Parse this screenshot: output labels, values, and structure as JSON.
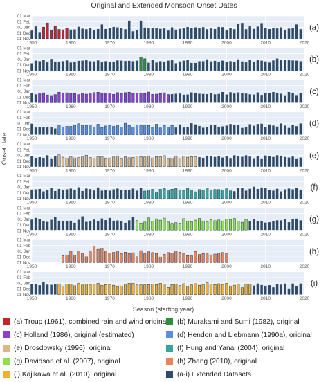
{
  "chart_data": {
    "type": "bar",
    "title": "Original and Extended Monsoon Onset Dates",
    "xlabel": "Season (starting year)",
    "ylabel": "Onset date",
    "xticks": [
      "1950",
      "1960",
      "1970",
      "1980",
      "1990",
      "2000",
      "2010",
      "2020"
    ],
    "yticks": [
      "01 Nov",
      "01 Dec",
      "01 Jan",
      "01 Feb",
      "01 Mar"
    ],
    "ylim_days_after_nov1": [
      0,
      120
    ],
    "extended_color": "#2f4b68",
    "panels": [
      {
        "label": "(a)",
        "start_year": 1950,
        "onset_days_after_nov1": [
          43,
          65,
          35,
          61,
          83,
          43,
          65,
          49,
          47,
          55,
          48,
          49,
          63,
          53,
          50,
          55,
          45,
          51,
          75,
          51,
          55,
          62,
          60,
          57,
          50,
          95,
          39,
          47,
          95,
          59,
          57,
          55,
          55,
          52,
          54,
          43,
          60,
          48,
          52,
          55,
          62,
          57,
          60,
          58,
          61,
          50,
          54,
          51,
          62,
          61,
          45,
          55,
          50,
          79,
          83,
          50,
          65,
          52,
          64,
          82,
          55,
          51,
          58,
          54,
          60,
          47,
          53,
          58,
          75,
          50
        ],
        "original_name": "(a) Troup (1961), combined rain and wind original",
        "original_color": "#c0272d",
        "original_years": [
          1953,
          1954,
          1955,
          1956,
          1957,
          1958,
          1959
        ]
      },
      {
        "label": "(b)",
        "start_year": 1950,
        "onset_days_after_nov1": [
          39,
          53,
          50,
          56,
          44,
          62,
          47,
          47,
          50,
          54,
          43,
          46,
          52,
          53,
          55,
          50,
          49,
          54,
          44,
          50,
          47,
          48,
          54,
          53,
          51,
          52,
          50,
          53,
          70,
          63,
          42,
          56,
          43,
          50,
          48,
          53,
          55,
          39,
          49,
          53,
          58,
          41,
          41,
          50,
          50,
          60,
          49,
          52,
          45,
          53,
          46,
          50,
          46,
          60,
          49,
          44,
          58,
          48,
          55,
          53,
          49,
          43,
          54,
          64,
          59,
          58,
          58,
          54,
          53,
          50
        ],
        "original_name": "(b) Murakami and Sumi (1982), original",
        "original_color": "#2f8f3a",
        "original_years": [
          1978,
          1979
        ]
      },
      {
        "label": "(c)",
        "start_year": 1950,
        "onset_days_after_nov1": [
          51,
          44,
          47,
          52,
          41,
          38,
          43,
          55,
          49,
          52,
          51,
          49,
          43,
          50,
          45,
          47,
          53,
          55,
          50,
          51,
          47,
          44,
          53,
          48,
          53,
          55,
          49,
          51,
          51,
          48,
          56,
          44,
          45,
          48,
          52,
          43,
          45,
          47,
          48,
          42,
          43,
          54,
          50,
          47,
          46,
          45,
          51,
          44,
          46,
          56,
          43,
          55,
          48,
          54,
          50,
          48,
          44,
          43,
          54,
          41,
          51,
          50,
          56,
          52,
          47,
          39,
          56,
          51,
          40,
          52
        ],
        "original_name": "(c) Holland (1986), original (estimated)",
        "original_color": "#8a3fd1",
        "original_years": [
          1952,
          1953,
          1954,
          1955,
          1956,
          1957,
          1958,
          1959,
          1960,
          1961,
          1962,
          1963,
          1964,
          1965,
          1966,
          1967,
          1968,
          1969,
          1970,
          1971,
          1972,
          1973,
          1974,
          1975,
          1976,
          1977,
          1978,
          1979,
          1980,
          1981,
          1982,
          1983,
          1984,
          1985
        ]
      },
      {
        "label": "(d)",
        "start_year": 1950,
        "onset_days_after_nov1": [
          58,
          38,
          42,
          40,
          42,
          42,
          33,
          50,
          41,
          44,
          44,
          48,
          58,
          50,
          48,
          52,
          40,
          55,
          38,
          46,
          49,
          44,
          50,
          41,
          60,
          49,
          40,
          52,
          48,
          50,
          49,
          39,
          55,
          36,
          49,
          41,
          49,
          38,
          54,
          38,
          41,
          60,
          54,
          46,
          37,
          42,
          51,
          52,
          40,
          44,
          48,
          56,
          51,
          53,
          36,
          40,
          55,
          47,
          56,
          58,
          39,
          54,
          48,
          43,
          59,
          48,
          36,
          50,
          45,
          59
        ],
        "original_name": "(d) Hendon and Liebmann (1990a), original",
        "original_color": "#5a8fe0",
        "original_years": [
          1957,
          1958,
          1959,
          1960,
          1961,
          1962,
          1963,
          1964,
          1965,
          1966,
          1967,
          1968,
          1969,
          1970,
          1971,
          1972,
          1973,
          1974,
          1975,
          1976,
          1977,
          1978,
          1979,
          1980,
          1981,
          1982,
          1983,
          1984,
          1985,
          1986
        ]
      },
      {
        "label": "(e)",
        "start_year": 1950,
        "onset_days_after_nov1": [
          55,
          44,
          50,
          45,
          60,
          40,
          56,
          62,
          50,
          45,
          54,
          46,
          48,
          51,
          60,
          48,
          45,
          52,
          54,
          41,
          46,
          51,
          57,
          41,
          52,
          47,
          49,
          55,
          53,
          51,
          57,
          46,
          53,
          52,
          58,
          40,
          44,
          57,
          45,
          55,
          50,
          53,
          52,
          50,
          45,
          58,
          54,
          51,
          57,
          48,
          55,
          42,
          60,
          56,
          52,
          60,
          53,
          41,
          54,
          40,
          59,
          55,
          51,
          60,
          58,
          51,
          48,
          53,
          40,
          48
        ],
        "original_name": "(e) Drosdowsky (1996), original",
        "original_color": "#d8b888",
        "original_years": [
          1957,
          1958,
          1959,
          1960,
          1961,
          1962,
          1963,
          1964,
          1965,
          1966,
          1967,
          1968,
          1969,
          1970,
          1971,
          1972,
          1973,
          1974,
          1975,
          1976,
          1977,
          1978,
          1979,
          1980,
          1981,
          1982,
          1983,
          1984,
          1985,
          1986,
          1987,
          1988,
          1989,
          1990,
          1991,
          1992
        ]
      },
      {
        "label": "(f)",
        "start_year": 1950,
        "onset_days_after_nov1": [
          48,
          49,
          51,
          38,
          44,
          58,
          40,
          51,
          44,
          49,
          53,
          47,
          60,
          40,
          53,
          50,
          43,
          59,
          42,
          46,
          42,
          49,
          53,
          44,
          46,
          47,
          53,
          42,
          55,
          40,
          46,
          49,
          34,
          49,
          53,
          45,
          50,
          53,
          46,
          44,
          55,
          46,
          36,
          48,
          42,
          56,
          45,
          48,
          48,
          46,
          52,
          41,
          39,
          55,
          58,
          42,
          52,
          63,
          51,
          59,
          57,
          44,
          42,
          52,
          38,
          49,
          53,
          49,
          58,
          44
        ],
        "original_name": "(f) Hung and Yanai (2004), original",
        "original_color": "#3aa39a",
        "original_years": [
          1979,
          1980,
          1981,
          1982,
          1983,
          1984,
          1985,
          1986,
          1987,
          1988,
          1989,
          1990,
          1991,
          1992,
          1993,
          1994,
          1995,
          1996,
          1997,
          1998,
          1999,
          2000,
          2001
        ]
      },
      {
        "label": "(g)",
        "start_year": 1950,
        "onset_days_after_nov1": [
          58,
          67,
          60,
          50,
          46,
          57,
          70,
          52,
          51,
          51,
          52,
          41,
          57,
          75,
          46,
          51,
          58,
          51,
          64,
          55,
          67,
          52,
          53,
          51,
          41,
          54,
          71,
          53,
          40,
          45,
          67,
          50,
          62,
          55,
          66,
          45,
          38,
          42,
          39,
          63,
          51,
          46,
          55,
          64,
          51,
          46,
          58,
          52,
          56,
          51,
          60,
          59,
          64,
          49,
          44,
          59,
          48,
          59,
          49,
          48,
          42,
          44,
          48,
          54,
          54,
          60,
          44,
          61,
          63,
          54
        ],
        "original_name": "(g) Davidson et al. (2007), original",
        "original_color": "#8fe04a",
        "original_years": [
          1977,
          1978,
          1979,
          1980,
          1981,
          1982,
          1983,
          1984,
          1985,
          1986,
          1987,
          1988,
          1989,
          1990,
          1991,
          1992,
          1993,
          1994,
          1995,
          1996,
          1997,
          1998,
          1999,
          2000,
          2001,
          2002,
          2003,
          2004,
          2005
        ]
      },
      {
        "label": "(h)",
        "start_year": 1950,
        "onset_days_after_nov1": [
          0,
          0,
          0,
          0,
          0,
          0,
          0,
          0,
          37,
          39,
          60,
          39,
          62,
          49,
          31,
          57,
          88,
          70,
          76,
          62,
          50,
          54,
          62,
          48,
          55,
          48,
          52,
          31,
          63,
          47,
          61,
          53,
          48,
          30,
          44,
          53,
          51,
          62,
          55,
          49,
          37,
          36,
          59,
          43,
          48,
          46,
          41,
          45,
          49,
          53,
          49,
          0,
          0,
          0,
          0,
          0,
          0,
          0,
          0,
          0,
          0,
          0,
          0,
          0,
          0,
          0,
          0,
          0,
          0,
          0
        ],
        "original_name": "(h) Zhang (2010), original",
        "original_color": "#e8845a",
        "original_years": [
          1958,
          1959,
          1960,
          1961,
          1962,
          1963,
          1964,
          1965,
          1966,
          1967,
          1968,
          1969,
          1970,
          1971,
          1972,
          1973,
          1974,
          1975,
          1976,
          1977,
          1978,
          1979,
          1980,
          1981,
          1982,
          1983,
          1984,
          1985,
          1986,
          1987,
          1988,
          1989,
          1990,
          1991,
          1992,
          1993,
          1994,
          1995,
          1996,
          1997,
          1998,
          1999,
          2000
        ]
      },
      {
        "label": "(i)",
        "start_year": 1950,
        "onset_days_after_nov1": [
          54,
          57,
          49,
          64,
          52,
          51,
          53,
          56,
          44,
          54,
          54,
          46,
          59,
          50,
          54,
          53,
          54,
          59,
          48,
          52,
          53,
          49,
          42,
          45,
          56,
          59,
          59,
          51,
          51,
          51,
          52,
          54,
          52,
          59,
          54,
          37,
          52,
          56,
          47,
          57,
          40,
          51,
          57,
          49,
          53,
          62,
          55,
          52,
          57,
          53,
          59,
          45,
          49,
          56,
          36,
          56,
          56,
          47,
          58,
          50,
          46,
          49,
          38,
          53,
          52,
          58,
          32,
          58,
          44,
          58
        ],
        "original_name": "(i) Kajikawa et al. (2010), original",
        "original_color": "#f0b030",
        "original_years": [
          1957,
          1958,
          1959,
          1960,
          1961,
          1962,
          1963,
          1964,
          1965,
          1966,
          1967,
          1968,
          1969,
          1970,
          1971,
          1972,
          1973,
          1974,
          1975,
          1976,
          1977,
          1978,
          1979,
          1980,
          1981,
          1982,
          1983,
          1984,
          1985,
          1986,
          1987,
          1988,
          1989,
          1990,
          1991,
          1992,
          1993,
          1994,
          1995,
          1996,
          1997,
          1998,
          1999,
          2000,
          2001,
          2002,
          2003,
          2004,
          2005,
          2006
        ]
      }
    ],
    "legend": [
      {
        "text": "(a) Troup (1961), combined rain and wind original",
        "color": "#c0272d"
      },
      {
        "text": "(b) Murakami and Sumi (1982), original",
        "color": "#2f8f3a"
      },
      {
        "text": "(c) Holland (1986), original (estimated)",
        "color": "#8a3fd1"
      },
      {
        "text": "(d) Hendon and Liebmann (1990a), original",
        "color": "#5a8fe0"
      },
      {
        "text": "(e) Drosdowsky (1996), original",
        "color": "#d8b888"
      },
      {
        "text": "(f) Hung and Yanai (2004), original",
        "color": "#3aa39a"
      },
      {
        "text": "(g) Davidson et al. (2007), original",
        "color": "#8fe04a"
      },
      {
        "text": "(h) Zhang (2010), original",
        "color": "#e8845a"
      },
      {
        "text": "(i) Kajikawa et al. (2010), original",
        "color": "#f0b030"
      },
      {
        "text": "(a-i) Extended Datasets",
        "color": "#2f4b68"
      }
    ]
  }
}
